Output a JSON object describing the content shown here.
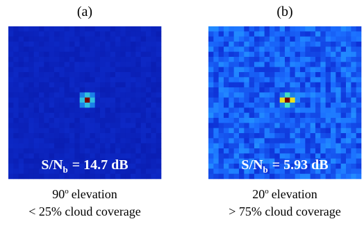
{
  "panels": [
    {
      "label": "(a)",
      "snr": {
        "name": "S/N",
        "sub": "b",
        "rest": "= 14.7 dB"
      },
      "caption": {
        "angle": "90",
        "degree": "o",
        "line1": "elevation",
        "line2": "< 25% cloud coverage"
      }
    },
    {
      "label": "(b)",
      "snr": {
        "name": "S/N",
        "sub": "b",
        "rest": "= 5.93 dB"
      },
      "caption": {
        "angle": "20",
        "degree": "o",
        "line1": "elevation",
        "line2": "> 75% cloud coverage"
      }
    }
  ]
}
